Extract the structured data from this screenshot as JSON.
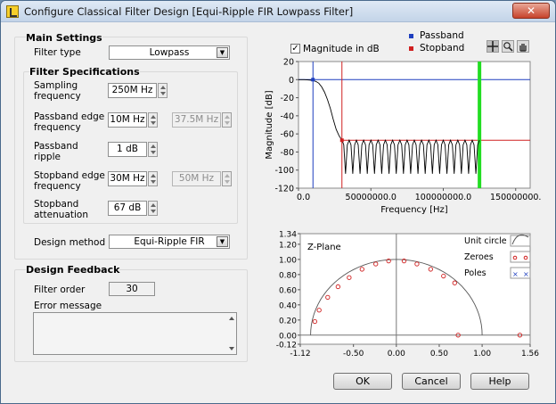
{
  "window": {
    "title": "Configure Classical Filter Design [Equi-Ripple FIR Lowpass Filter]",
    "close_glyph": "✕"
  },
  "main_settings": {
    "title": "Main Settings",
    "filter_type_label": "Filter type",
    "filter_type_value": "Lowpass"
  },
  "filter_specs": {
    "title": "Filter Specifications",
    "sampling_label_1": "Sampling",
    "sampling_label_2": "frequency",
    "sampling_value": "250M Hz",
    "passband_edge_label_1": "Passband edge",
    "passband_edge_label_2": "frequency",
    "passband_edge_value": "10M Hz",
    "passband_edge_upper": "37.5M Hz",
    "passband_ripple_label_1": "Passband",
    "passband_ripple_label_2": "ripple",
    "passband_ripple_value": "1 dB",
    "stopband_edge_label_1": "Stopband edge",
    "stopband_edge_label_2": "frequency",
    "stopband_edge_value": "30M Hz",
    "stopband_edge_upper": "50M Hz",
    "stopband_att_label_1": "Stopband",
    "stopband_att_label_2": "attenuation",
    "stopband_att_value": "67 dB"
  },
  "design_method": {
    "label": "Design method",
    "value": "Equi-Ripple FIR"
  },
  "feedback": {
    "title": "Design Feedback",
    "order_label": "Filter order",
    "order_value": "30",
    "error_label": "Error message",
    "error_value": ""
  },
  "mag_graph": {
    "checkbox_label": "Magnitude in dB",
    "checkbox_checked": true,
    "legend": [
      {
        "name": "Passband",
        "color": "#1f3fbf"
      },
      {
        "name": "Stopband",
        "color": "#d02020"
      }
    ],
    "tool_icons": [
      "cursor-move-icon",
      "zoom-icon",
      "pan-hand-icon"
    ],
    "ylabel": "Magnitude [dB]",
    "xlabel": "Frequency [Hz]",
    "yticks": [
      "20",
      "0",
      "-20",
      "-40",
      "-60",
      "-80",
      "-100",
      "-120"
    ],
    "xticks": [
      "0.0",
      "50000000.0",
      "100000000.0",
      "150000000."
    ]
  },
  "zplane": {
    "title": "Z-Plane",
    "legend": [
      {
        "name": "Unit circle"
      },
      {
        "name": "Zeroes"
      },
      {
        "name": "Poles"
      }
    ],
    "yticks": [
      "1.34",
      "1.20",
      "1.00",
      "0.80",
      "0.60",
      "0.40",
      "0.20",
      "0.00",
      "-0.12"
    ],
    "xticks": [
      "-1.12",
      "-0.50",
      "0.00",
      "0.50",
      "1.00",
      "1.56"
    ]
  },
  "chart_data": [
    {
      "type": "line",
      "title": "",
      "xlabel": "Frequency [Hz]",
      "ylabel": "Magnitude [dB]",
      "xlim": [
        0,
        160000000
      ],
      "ylim": [
        -120,
        20
      ],
      "x_ticks": [
        0,
        50000000,
        100000000,
        150000000
      ],
      "y_ticks": [
        20,
        0,
        -20,
        -40,
        -60,
        -80,
        -100,
        -120
      ],
      "grid": false,
      "markers": {
        "passband_edge_hz": 10000000,
        "stopband_edge_hz": 30000000,
        "passband_level_db": 0,
        "stopband_level_db": -67,
        "nyquist_hz": 125000000
      },
      "series": [
        {
          "name": "",
          "x": [
            0,
            4000000,
            8000000,
            10000000,
            12000000,
            14000000,
            16000000,
            18000000,
            20000000,
            22000000,
            24000000,
            26000000,
            28000000,
            30000000,
            32000000,
            34000000,
            36000000,
            40000000,
            44000000,
            50000000,
            56000000,
            62000000,
            70000000,
            80000000,
            90000000,
            100000000,
            110000000,
            120000000,
            125000000
          ],
          "y": [
            0,
            0,
            -0.5,
            -1,
            -2,
            -4,
            -8,
            -14,
            -22,
            -32,
            -44,
            -55,
            -62,
            -67,
            -80,
            -68,
            -95,
            -67,
            -100,
            -67,
            -98,
            -67,
            -100,
            -67,
            -97,
            -67,
            -100,
            -67,
            -67
          ]
        }
      ],
      "ripple_stopband": {
        "min_db": -104,
        "max_db": -67,
        "lobe_count": 19
      }
    },
    {
      "type": "scatter",
      "title": "Z-Plane",
      "xlim": [
        -1.12,
        1.56
      ],
      "ylim": [
        -0.12,
        1.34
      ],
      "x_ticks": [
        -1.12,
        -0.5,
        0.0,
        0.5,
        1.0,
        1.56
      ],
      "y_ticks": [
        1.34,
        1.2,
        1.0,
        0.8,
        0.6,
        0.4,
        0.2,
        0.0,
        -0.12
      ],
      "series": [
        {
          "name": "Zeroes",
          "x": [
            -0.95,
            -0.9,
            -0.8,
            -0.68,
            -0.55,
            -0.4,
            -0.24,
            -0.09,
            0.09,
            0.24,
            0.4,
            0.55,
            0.68,
            0.72,
            1.44
          ],
          "y": [
            0.18,
            0.33,
            0.5,
            0.64,
            0.76,
            0.87,
            0.94,
            0.98,
            0.98,
            0.94,
            0.87,
            0.78,
            0.69,
            0.0,
            0.0
          ]
        },
        {
          "name": "Poles",
          "x": [],
          "y": []
        }
      ]
    }
  ]
}
